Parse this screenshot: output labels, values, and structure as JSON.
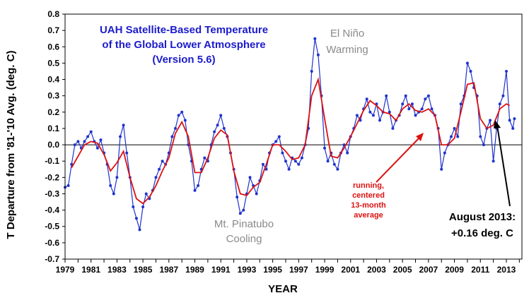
{
  "chart_data": {
    "type": "line",
    "title_lines": [
      "UAH Satellite-Based Temperature",
      "of the Global Lower Atmosphere",
      "(Version 5.6)"
    ],
    "xlabel": "YEAR",
    "ylabel": "T Departure from '81-'10 Avg. (deg. C)",
    "xlim": [
      1979,
      2014.2
    ],
    "ylim": [
      -0.7,
      0.8
    ],
    "x_ticks": [
      "1979",
      "1981",
      "1983",
      "1985",
      "1987",
      "1989",
      "1991",
      "1993",
      "1995",
      "1997",
      "1999",
      "2001",
      "2003",
      "2005",
      "2007",
      "2009",
      "2011",
      "2013"
    ],
    "y_ticks": [
      "0.8",
      "0.7",
      "0.6",
      "0.5",
      "0.4",
      "0.3",
      "0.2",
      "0.1",
      "0.0",
      "-0.1",
      "-0.2",
      "-0.3",
      "-0.4",
      "-0.5",
      "-0.6",
      "-0.7"
    ],
    "grid": false,
    "zero_line": true,
    "series": [
      {
        "kind": "monthly",
        "color": "#1f33cc",
        "points": [
          [
            1979.0,
            -0.26
          ],
          [
            1979.25,
            -0.25
          ],
          [
            1979.5,
            -0.12
          ],
          [
            1979.75,
            0.0
          ],
          [
            1980.0,
            0.02
          ],
          [
            1980.25,
            -0.02
          ],
          [
            1980.5,
            0.02
          ],
          [
            1980.75,
            0.05
          ],
          [
            1981.0,
            0.08
          ],
          [
            1981.25,
            0.02
          ],
          [
            1981.5,
            -0.02
          ],
          [
            1981.75,
            0.03
          ],
          [
            1982.0,
            -0.05
          ],
          [
            1982.25,
            -0.12
          ],
          [
            1982.5,
            -0.25
          ],
          [
            1982.75,
            -0.3
          ],
          [
            1983.0,
            -0.2
          ],
          [
            1983.25,
            0.05
          ],
          [
            1983.5,
            0.12
          ],
          [
            1983.75,
            -0.05
          ],
          [
            1984.0,
            -0.2
          ],
          [
            1984.25,
            -0.38
          ],
          [
            1984.5,
            -0.45
          ],
          [
            1984.75,
            -0.52
          ],
          [
            1985.0,
            -0.38
          ],
          [
            1985.25,
            -0.3
          ],
          [
            1985.5,
            -0.33
          ],
          [
            1985.75,
            -0.28
          ],
          [
            1986.0,
            -0.2
          ],
          [
            1986.25,
            -0.15
          ],
          [
            1986.5,
            -0.1
          ],
          [
            1986.75,
            -0.12
          ],
          [
            1987.0,
            -0.05
          ],
          [
            1987.25,
            0.05
          ],
          [
            1987.5,
            0.1
          ],
          [
            1987.75,
            0.18
          ],
          [
            1988.0,
            0.2
          ],
          [
            1988.25,
            0.15
          ],
          [
            1988.5,
            0.0
          ],
          [
            1988.75,
            -0.1
          ],
          [
            1989.0,
            -0.28
          ],
          [
            1989.25,
            -0.25
          ],
          [
            1989.5,
            -0.15
          ],
          [
            1989.75,
            -0.08
          ],
          [
            1990.0,
            -0.1
          ],
          [
            1990.25,
            0.0
          ],
          [
            1990.5,
            0.08
          ],
          [
            1990.75,
            0.12
          ],
          [
            1991.0,
            0.18
          ],
          [
            1991.25,
            0.1
          ],
          [
            1991.5,
            0.05
          ],
          [
            1991.75,
            -0.05
          ],
          [
            1992.0,
            -0.15
          ],
          [
            1992.25,
            -0.32
          ],
          [
            1992.5,
            -0.42
          ],
          [
            1992.75,
            -0.4
          ],
          [
            1993.0,
            -0.3
          ],
          [
            1993.25,
            -0.2
          ],
          [
            1993.5,
            -0.25
          ],
          [
            1993.75,
            -0.3
          ],
          [
            1994.0,
            -0.22
          ],
          [
            1994.25,
            -0.12
          ],
          [
            1994.5,
            -0.15
          ],
          [
            1994.75,
            -0.05
          ],
          [
            1995.0,
            0.0
          ],
          [
            1995.25,
            0.02
          ],
          [
            1995.5,
            0.05
          ],
          [
            1995.75,
            -0.05
          ],
          [
            1996.0,
            -0.1
          ],
          [
            1996.25,
            -0.15
          ],
          [
            1996.5,
            -0.08
          ],
          [
            1996.75,
            -0.1
          ],
          [
            1997.0,
            -0.12
          ],
          [
            1997.25,
            -0.08
          ],
          [
            1997.5,
            0.0
          ],
          [
            1997.75,
            0.1
          ],
          [
            1998.0,
            0.45
          ],
          [
            1998.25,
            0.65
          ],
          [
            1998.5,
            0.55
          ],
          [
            1998.75,
            0.3
          ],
          [
            1999.0,
            -0.02
          ],
          [
            1999.25,
            -0.1
          ],
          [
            1999.5,
            -0.05
          ],
          [
            1999.75,
            -0.12
          ],
          [
            2000.0,
            -0.15
          ],
          [
            2000.25,
            -0.05
          ],
          [
            2000.5,
            0.0
          ],
          [
            2000.75,
            -0.05
          ],
          [
            2001.0,
            0.05
          ],
          [
            2001.25,
            0.1
          ],
          [
            2001.5,
            0.18
          ],
          [
            2001.75,
            0.15
          ],
          [
            2002.0,
            0.22
          ],
          [
            2002.25,
            0.28
          ],
          [
            2002.5,
            0.2
          ],
          [
            2002.75,
            0.18
          ],
          [
            2003.0,
            0.25
          ],
          [
            2003.25,
            0.15
          ],
          [
            2003.5,
            0.2
          ],
          [
            2003.75,
            0.3
          ],
          [
            2004.0,
            0.2
          ],
          [
            2004.25,
            0.1
          ],
          [
            2004.5,
            0.15
          ],
          [
            2004.75,
            0.18
          ],
          [
            2005.0,
            0.25
          ],
          [
            2005.25,
            0.3
          ],
          [
            2005.5,
            0.22
          ],
          [
            2005.75,
            0.25
          ],
          [
            2006.0,
            0.18
          ],
          [
            2006.25,
            0.2
          ],
          [
            2006.5,
            0.22
          ],
          [
            2006.75,
            0.28
          ],
          [
            2007.0,
            0.3
          ],
          [
            2007.25,
            0.22
          ],
          [
            2007.5,
            0.18
          ],
          [
            2007.75,
            0.1
          ],
          [
            2008.0,
            -0.15
          ],
          [
            2008.25,
            -0.05
          ],
          [
            2008.5,
            0.0
          ],
          [
            2008.75,
            0.05
          ],
          [
            2009.0,
            0.1
          ],
          [
            2009.25,
            0.05
          ],
          [
            2009.5,
            0.25
          ],
          [
            2009.75,
            0.3
          ],
          [
            2010.0,
            0.5
          ],
          [
            2010.25,
            0.45
          ],
          [
            2010.5,
            0.35
          ],
          [
            2010.75,
            0.3
          ],
          [
            2011.0,
            0.05
          ],
          [
            2011.25,
            0.0
          ],
          [
            2011.5,
            0.1
          ],
          [
            2011.75,
            0.15
          ],
          [
            2012.0,
            -0.1
          ],
          [
            2012.25,
            0.1
          ],
          [
            2012.5,
            0.25
          ],
          [
            2012.75,
            0.3
          ],
          [
            2013.0,
            0.45
          ],
          [
            2013.25,
            0.15
          ],
          [
            2013.5,
            0.1
          ],
          [
            2013.62,
            0.16
          ]
        ]
      },
      {
        "kind": "running_mean",
        "color": "#dd1111",
        "points": [
          [
            1979.5,
            -0.14
          ],
          [
            1980.0,
            -0.07
          ],
          [
            1980.5,
            0.0
          ],
          [
            1981.0,
            0.02
          ],
          [
            1981.5,
            0.01
          ],
          [
            1982.0,
            -0.06
          ],
          [
            1982.5,
            -0.16
          ],
          [
            1983.0,
            -0.11
          ],
          [
            1983.5,
            -0.04
          ],
          [
            1984.0,
            -0.2
          ],
          [
            1984.5,
            -0.33
          ],
          [
            1985.0,
            -0.36
          ],
          [
            1985.5,
            -0.32
          ],
          [
            1986.0,
            -0.25
          ],
          [
            1986.5,
            -0.16
          ],
          [
            1987.0,
            -0.08
          ],
          [
            1987.5,
            0.07
          ],
          [
            1988.0,
            0.14
          ],
          [
            1988.5,
            0.05
          ],
          [
            1989.0,
            -0.17
          ],
          [
            1989.5,
            -0.17
          ],
          [
            1990.0,
            -0.08
          ],
          [
            1990.5,
            0.04
          ],
          [
            1991.0,
            0.09
          ],
          [
            1991.5,
            0.06
          ],
          [
            1992.0,
            -0.16
          ],
          [
            1992.5,
            -0.3
          ],
          [
            1993.0,
            -0.31
          ],
          [
            1993.5,
            -0.26
          ],
          [
            1994.0,
            -0.23
          ],
          [
            1994.5,
            -0.12
          ],
          [
            1995.0,
            0.0
          ],
          [
            1995.5,
            0.0
          ],
          [
            1996.0,
            -0.04
          ],
          [
            1996.5,
            -0.09
          ],
          [
            1997.0,
            -0.08
          ],
          [
            1997.5,
            0.0
          ],
          [
            1998.0,
            0.3
          ],
          [
            1998.5,
            0.4
          ],
          [
            1999.0,
            0.16
          ],
          [
            1999.5,
            -0.07
          ],
          [
            2000.0,
            -0.08
          ],
          [
            2000.5,
            -0.02
          ],
          [
            2001.0,
            0.05
          ],
          [
            2001.5,
            0.13
          ],
          [
            2002.0,
            0.21
          ],
          [
            2002.5,
            0.27
          ],
          [
            2003.0,
            0.24
          ],
          [
            2003.5,
            0.2
          ],
          [
            2004.0,
            0.19
          ],
          [
            2004.5,
            0.15
          ],
          [
            2005.0,
            0.22
          ],
          [
            2005.5,
            0.25
          ],
          [
            2006.0,
            0.21
          ],
          [
            2006.5,
            0.2
          ],
          [
            2007.0,
            0.22
          ],
          [
            2007.5,
            0.18
          ],
          [
            2008.0,
            0.0
          ],
          [
            2008.5,
            0.0
          ],
          [
            2009.0,
            0.04
          ],
          [
            2009.5,
            0.2
          ],
          [
            2010.0,
            0.37
          ],
          [
            2010.5,
            0.38
          ],
          [
            2011.0,
            0.16
          ],
          [
            2011.5,
            0.1
          ],
          [
            2012.0,
            0.12
          ],
          [
            2012.5,
            0.22
          ],
          [
            2013.0,
            0.25
          ],
          [
            2013.25,
            0.24
          ]
        ]
      }
    ]
  },
  "annotations": {
    "el_nino_lines": [
      "El Niño",
      "Warming"
    ],
    "pinatubo_lines": [
      "Mt. Pinatubo",
      "Cooling"
    ],
    "running_lines": [
      "running,",
      "centered",
      "13-month",
      "average"
    ],
    "latest_lines": [
      "August 2013:",
      "+0.16 deg. C"
    ]
  }
}
